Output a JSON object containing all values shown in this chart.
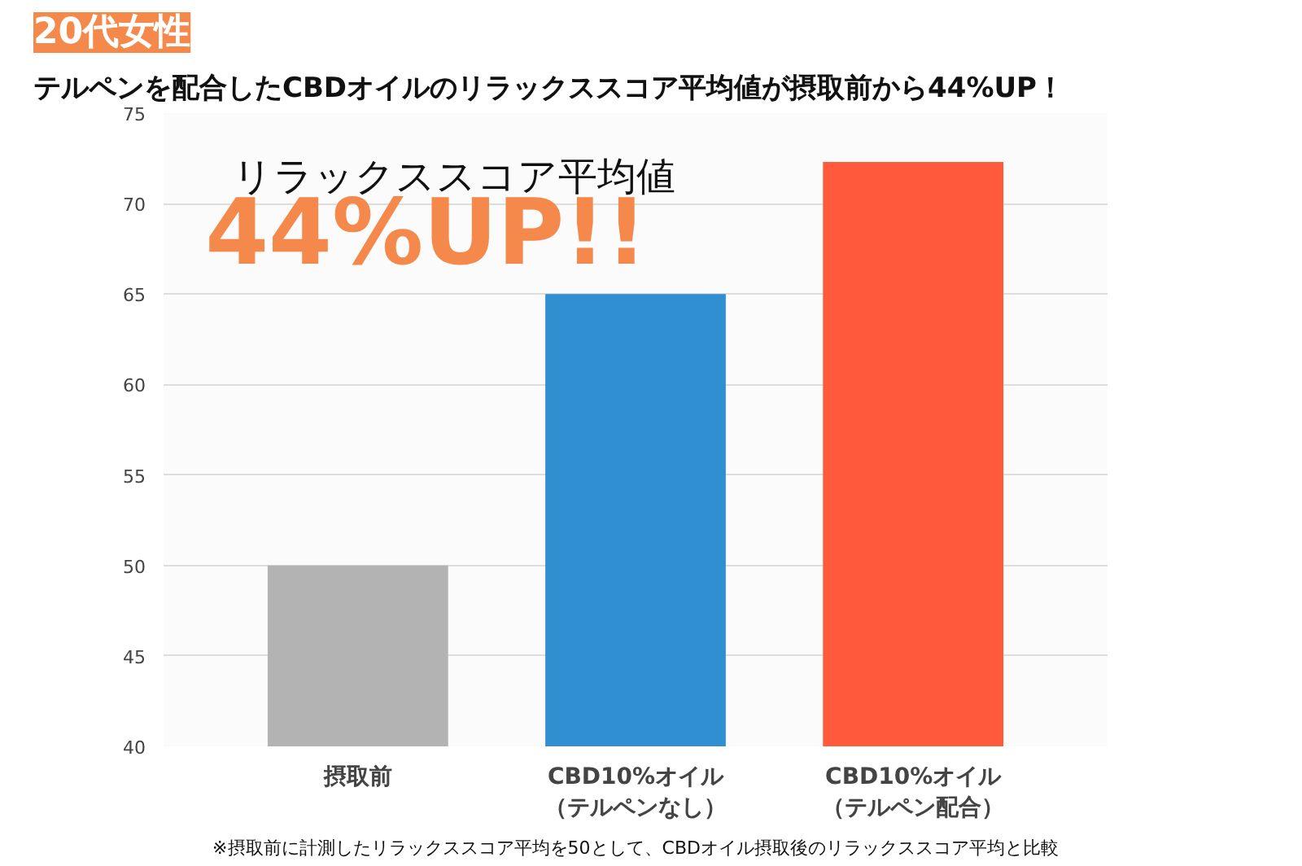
{
  "chart_data": {
    "type": "bar",
    "title": "20代女性",
    "subtitle": "テルペンを配合したCBDオイルのリラックススコア平均値が摂取前から44%UP！",
    "categories": [
      "摂取前",
      "CBD10%オイル（テルペンなし）",
      "CBD10%オイル（テルペン配合）"
    ],
    "values": [
      50,
      65,
      72.3
    ],
    "colors": [
      "#b3b3b3",
      "#2f8fd0",
      "#ff5a3c"
    ],
    "ylim": [
      40,
      75
    ],
    "yticks": [
      40,
      45,
      50,
      55,
      60,
      65,
      70,
      75
    ],
    "grid": "y",
    "annotations": [
      "リラックススコア平均値",
      "44%UP!!",
      "※摂取前に計測したリラックススコア平均を50として、CBDオイル摂取後のリラックススコア平均と比較"
    ]
  }
}
